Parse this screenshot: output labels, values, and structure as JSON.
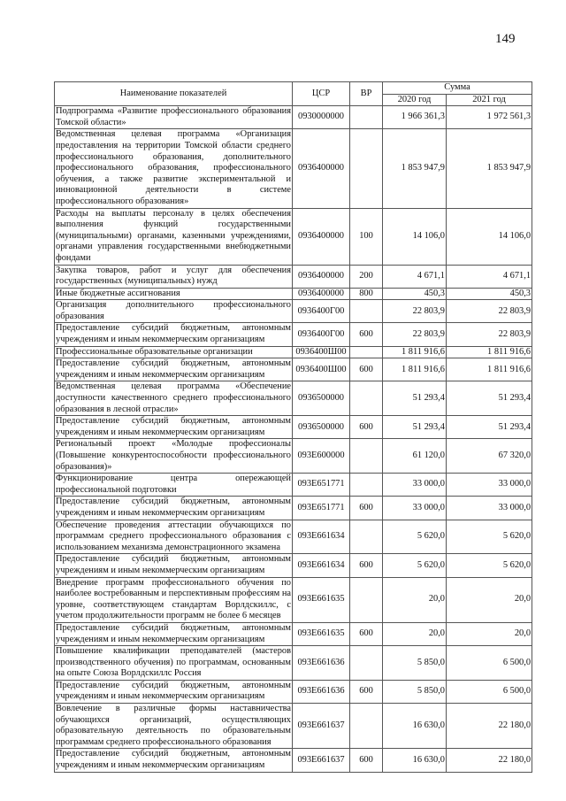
{
  "page_number": "149",
  "header": {
    "name": "Наименование показателей",
    "csr": "ЦСР",
    "vr": "ВР",
    "sum": "Сумма",
    "y2020": "2020 год",
    "y2021": "2021 год"
  },
  "rows": [
    {
      "name": "Подпрограмма «Развитие профессионального образования Томской области»",
      "csr": "0930000000",
      "vr": "",
      "v2020": "1 966 361,3",
      "v2021": "1 972 561,3"
    },
    {
      "name": "Ведомственная целевая программа «Организация предоставления на территории Томской области среднего профессионального образования, дополнительного профессионального образования, профессионального обучения, а также развитие экспериментальной и инновационной деятельности в системе профессионального образования»",
      "csr": "0936400000",
      "vr": "",
      "v2020": "1 853 947,9",
      "v2021": "1 853 947,9"
    },
    {
      "name": "Расходы на выплаты персоналу в целях обеспечения выполнения функций государственными (муниципальными) органами, казенными учреждениями, органами управления государственными внебюджетными фондами",
      "csr": "0936400000",
      "vr": "100",
      "v2020": "14 106,0",
      "v2021": "14 106,0"
    },
    {
      "name": "Закупка товаров, работ и услуг для обеспечения государственных (муниципальных) нужд",
      "csr": "0936400000",
      "vr": "200",
      "v2020": "4 671,1",
      "v2021": "4 671,1"
    },
    {
      "name": "Иные бюджетные ассигнования",
      "csr": "0936400000",
      "vr": "800",
      "v2020": "450,3",
      "v2021": "450,3"
    },
    {
      "name": "Организация дополнительного профессионального образования",
      "csr": "0936400Г00",
      "vr": "",
      "v2020": "22 803,9",
      "v2021": "22 803,9"
    },
    {
      "name": "Предоставление субсидий бюджетным, автономным учреждениям и иным некоммерческим организациям",
      "csr": "0936400Г00",
      "vr": "600",
      "v2020": "22 803,9",
      "v2021": "22 803,9"
    },
    {
      "name": "Профессиональные образовательные организации",
      "csr": "0936400Ш00",
      "vr": "",
      "v2020": "1 811 916,6",
      "v2021": "1 811 916,6"
    },
    {
      "name": "Предоставление субсидий бюджетным, автономным учреждениям и иным некоммерческим организациям",
      "csr": "0936400Ш00",
      "vr": "600",
      "v2020": "1 811 916,6",
      "v2021": "1 811 916,6"
    },
    {
      "name": "Ведомственная целевая программа «Обеспечение доступности качественного среднего профессионального образования в лесной отрасли»",
      "csr": "0936500000",
      "vr": "",
      "v2020": "51 293,4",
      "v2021": "51 293,4"
    },
    {
      "name": "Предоставление субсидий бюджетным, автономным учреждениям и иным некоммерческим организациям",
      "csr": "0936500000",
      "vr": "600",
      "v2020": "51 293,4",
      "v2021": "51 293,4"
    },
    {
      "name": "Региональный проект «Молодые профессионалы (Повышение конкурентоспособности профессионального образования)»",
      "csr": "093E600000",
      "vr": "",
      "v2020": "61 120,0",
      "v2021": "67 320,0"
    },
    {
      "name": "Функционирование центра опережающей профессиональной подготовки",
      "csr": "093E651771",
      "vr": "",
      "v2020": "33 000,0",
      "v2021": "33 000,0"
    },
    {
      "name": "Предоставление субсидий бюджетным, автономным учреждениям и иным некоммерческим организациям",
      "csr": "093E651771",
      "vr": "600",
      "v2020": "33 000,0",
      "v2021": "33 000,0"
    },
    {
      "name": "Обеспечение проведения аттестации обучающихся по программам среднего профессионального образования с использованием механизма демонстрационного экзамена",
      "csr": "093E661634",
      "vr": "",
      "v2020": "5 620,0",
      "v2021": "5 620,0"
    },
    {
      "name": "Предоставление субсидий бюджетным, автономным учреждениям и иным некоммерческим организациям",
      "csr": "093E661634",
      "vr": "600",
      "v2020": "5 620,0",
      "v2021": "5 620,0"
    },
    {
      "name": "Внедрение программ профессионального обучения по наиболее востребованным и перспективным профессиям на уровне, соответствующем стандартам Ворлдскиллс, с учетом продолжительности программ не более 6 месяцев",
      "csr": "093E661635",
      "vr": "",
      "v2020": "20,0",
      "v2021": "20,0"
    },
    {
      "name": "Предоставление субсидий бюджетным, автономным учреждениям и иным некоммерческим организациям",
      "csr": "093E661635",
      "vr": "600",
      "v2020": "20,0",
      "v2021": "20,0"
    },
    {
      "name": "Повышение квалификации преподавателей (мастеров производственного обучения) по программам, основанным на опыте Союза Ворлдскиллс Россия",
      "csr": "093E661636",
      "vr": "",
      "v2020": "5 850,0",
      "v2021": "6 500,0"
    },
    {
      "name": "Предоставление субсидий бюджетным, автономным учреждениям и иным некоммерческим организациям",
      "csr": "093E661636",
      "vr": "600",
      "v2020": "5 850,0",
      "v2021": "6 500,0"
    },
    {
      "name": "Вовлечение в различные формы наставничества обучающихся организаций, осуществляющих образовательную деятельность по образовательным программам среднего профессионального образования",
      "csr": "093E661637",
      "vr": "",
      "v2020": "16 630,0",
      "v2021": "22 180,0"
    },
    {
      "name": "Предоставление субсидий бюджетным, автономным учреждениям и иным некоммерческим организациям",
      "csr": "093E661637",
      "vr": "600",
      "v2020": "16 630,0",
      "v2021": "22 180,0"
    }
  ]
}
